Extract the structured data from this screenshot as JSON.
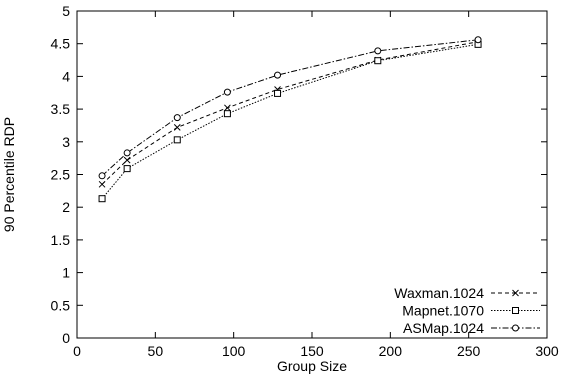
{
  "chart_data": {
    "type": "line",
    "xlabel": "Group Size",
    "ylabel": "90 Percentile RDP",
    "xlim": [
      0,
      300
    ],
    "ylim": [
      0,
      5
    ],
    "xticks": [
      "0",
      "50",
      "100",
      "150",
      "200",
      "250",
      "300"
    ],
    "yticks": [
      "0",
      "0.5",
      "1",
      "1.5",
      "2",
      "2.5",
      "3",
      "3.5",
      "4",
      "4.5",
      "5"
    ],
    "grid": false,
    "legend_position": "bottom-right",
    "x": [
      16,
      32,
      64,
      96,
      128,
      192,
      256
    ],
    "series": [
      {
        "name": "Waxman.1024",
        "marker": "x",
        "dash": "dashed",
        "values": [
          2.35,
          2.72,
          3.22,
          3.52,
          3.8,
          4.25,
          4.53
        ]
      },
      {
        "name": "Mapnet.1070",
        "marker": "square",
        "dash": "dotted",
        "values": [
          2.13,
          2.59,
          3.03,
          3.43,
          3.74,
          4.24,
          4.49
        ]
      },
      {
        "name": "ASMap.1024",
        "marker": "circle",
        "dash": "dash-dot",
        "values": [
          2.48,
          2.83,
          3.37,
          3.76,
          4.02,
          4.39,
          4.56
        ]
      }
    ],
    "colors": {
      "line": "#000000",
      "background": "#ffffff"
    }
  }
}
